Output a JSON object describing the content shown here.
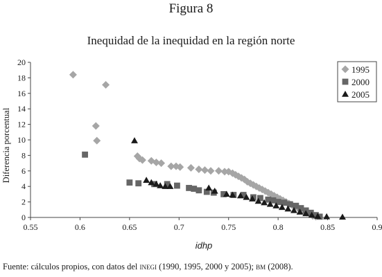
{
  "figure_label": "Figura 8",
  "source": {
    "prefix": "Fuente: cálculos propios, con datos del ",
    "org1": "inegi",
    "middle": " (1990, 1995, 2000 y 2005); ",
    "org2": "bm",
    "suffix": " (2008)."
  },
  "chart_data": {
    "type": "scatter",
    "title": "Inequidad de la inequidad en la región norte",
    "xlabel": "idhp",
    "ylabel": "Diferencia porcentual",
    "xlim": [
      0.55,
      0.9
    ],
    "ylim": [
      0,
      20
    ],
    "x_ticks": [
      "0.55",
      "0.6",
      "0.65",
      "0.7",
      "0.75",
      "0.8",
      "0.85",
      "0.9"
    ],
    "y_ticks": [
      "0",
      "2",
      "4",
      "6",
      "8",
      "10",
      "12",
      "14",
      "16",
      "18",
      "20"
    ],
    "grid": false,
    "legend_position": "top-right",
    "series": [
      {
        "name": "1995",
        "marker": "diamond",
        "color": "#a6a6a6",
        "points": [
          [
            0.593,
            18.4
          ],
          [
            0.626,
            17.1
          ],
          [
            0.616,
            11.8
          ],
          [
            0.617,
            9.9
          ],
          [
            0.658,
            7.9
          ],
          [
            0.66,
            7.6
          ],
          [
            0.663,
            7.4
          ],
          [
            0.672,
            7.3
          ],
          [
            0.677,
            7.1
          ],
          [
            0.682,
            7.0
          ],
          [
            0.692,
            6.6
          ],
          [
            0.697,
            6.6
          ],
          [
            0.701,
            6.5
          ],
          [
            0.712,
            6.4
          ],
          [
            0.72,
            6.2
          ],
          [
            0.726,
            6.1
          ],
          [
            0.732,
            6.0
          ],
          [
            0.74,
            6.0
          ],
          [
            0.746,
            5.9
          ],
          [
            0.75,
            5.9
          ],
          [
            0.754,
            5.7
          ],
          [
            0.757,
            5.5
          ],
          [
            0.76,
            5.3
          ],
          [
            0.763,
            5.1
          ],
          [
            0.766,
            4.9
          ],
          [
            0.769,
            4.6
          ],
          [
            0.772,
            4.4
          ],
          [
            0.775,
            4.2
          ],
          [
            0.778,
            4.0
          ],
          [
            0.781,
            3.8
          ],
          [
            0.784,
            3.6
          ],
          [
            0.787,
            3.4
          ],
          [
            0.79,
            3.2
          ],
          [
            0.793,
            3.0
          ],
          [
            0.796,
            2.8
          ],
          [
            0.799,
            2.6
          ],
          [
            0.802,
            2.4
          ],
          [
            0.805,
            2.2
          ],
          [
            0.808,
            2.0
          ],
          [
            0.811,
            1.8
          ],
          [
            0.814,
            1.6
          ],
          [
            0.817,
            1.4
          ],
          [
            0.82,
            1.2
          ],
          [
            0.823,
            1.0
          ],
          [
            0.826,
            0.8
          ],
          [
            0.829,
            0.6
          ],
          [
            0.832,
            0.4
          ],
          [
            0.835,
            0.2
          ],
          [
            0.838,
            0.1
          ]
        ]
      },
      {
        "name": "2000",
        "marker": "square",
        "color": "#666666",
        "points": [
          [
            0.605,
            8.1
          ],
          [
            0.65,
            4.5
          ],
          [
            0.659,
            4.4
          ],
          [
            0.675,
            4.3
          ],
          [
            0.688,
            4.3
          ],
          [
            0.698,
            4.1
          ],
          [
            0.71,
            3.8
          ],
          [
            0.715,
            3.7
          ],
          [
            0.72,
            3.5
          ],
          [
            0.728,
            3.3
          ],
          [
            0.735,
            3.2
          ],
          [
            0.745,
            3.0
          ],
          [
            0.755,
            2.9
          ],
          [
            0.765,
            2.9
          ],
          [
            0.775,
            2.6
          ],
          [
            0.782,
            2.5
          ],
          [
            0.79,
            2.3
          ],
          [
            0.795,
            2.2
          ],
          [
            0.8,
            2.0
          ],
          [
            0.806,
            1.9
          ],
          [
            0.812,
            1.7
          ],
          [
            0.818,
            1.5
          ],
          [
            0.823,
            1.2
          ],
          [
            0.828,
            0.9
          ],
          [
            0.833,
            0.6
          ],
          [
            0.838,
            0.3
          ],
          [
            0.842,
            0.1
          ]
        ]
      },
      {
        "name": "2005",
        "marker": "triangle",
        "color": "#1a1a1a",
        "points": [
          [
            0.655,
            9.9
          ],
          [
            0.667,
            4.8
          ],
          [
            0.672,
            4.5
          ],
          [
            0.677,
            4.3
          ],
          [
            0.681,
            4.1
          ],
          [
            0.686,
            4.0
          ],
          [
            0.691,
            4.0
          ],
          [
            0.73,
            3.8
          ],
          [
            0.736,
            3.4
          ],
          [
            0.748,
            3.0
          ],
          [
            0.754,
            2.9
          ],
          [
            0.762,
            2.8
          ],
          [
            0.768,
            2.6
          ],
          [
            0.774,
            2.4
          ],
          [
            0.78,
            2.1
          ],
          [
            0.786,
            1.9
          ],
          [
            0.792,
            1.7
          ],
          [
            0.798,
            1.5
          ],
          [
            0.804,
            1.3
          ],
          [
            0.81,
            1.1
          ],
          [
            0.816,
            0.9
          ],
          [
            0.822,
            0.7
          ],
          [
            0.828,
            0.5
          ],
          [
            0.834,
            0.3
          ],
          [
            0.84,
            0.15
          ],
          [
            0.849,
            0.1
          ],
          [
            0.865,
            0.05
          ]
        ]
      }
    ]
  }
}
